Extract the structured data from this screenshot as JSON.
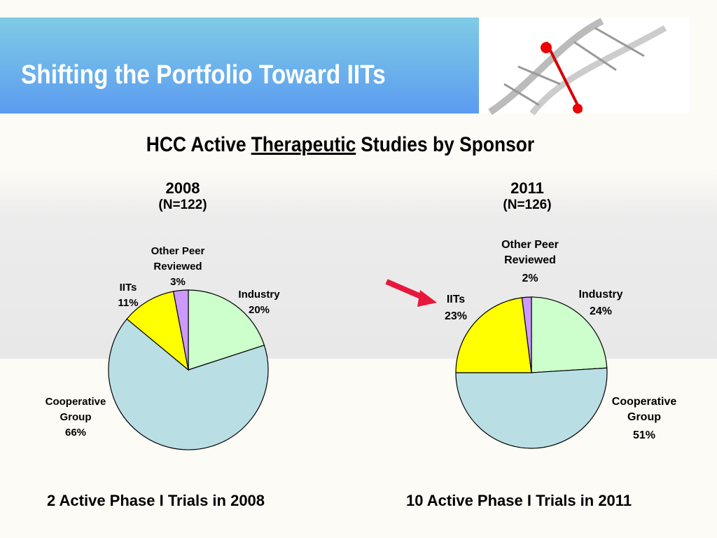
{
  "title": "Shifting the Portfolio Toward IITs",
  "subtitle": [
    "HCC Active",
    "Therapeutic",
    "Studies by Sponsor"
  ],
  "captions": [
    "2 Active Phase I Trials in 2008",
    "10 Active Phase I Trials in 2011"
  ],
  "chart_data": [
    {
      "type": "pie",
      "title": "2008",
      "subtitle": "(N=122)",
      "categories": [
        "Industry",
        "Cooperative Group",
        "IITs",
        "Other Peer Reviewed"
      ],
      "values": [
        20,
        66,
        11,
        3
      ],
      "value_labels": [
        "20%",
        "66%",
        "11%",
        "3%"
      ],
      "colors": [
        "#ccffcc",
        "#b9dfe4",
        "#ffff00",
        "#cc99ff"
      ]
    },
    {
      "type": "pie",
      "title": "2011",
      "subtitle": "(N=126)",
      "categories": [
        "Industry",
        "Cooperative Group",
        "IITs",
        "Other Peer Reviewed"
      ],
      "values": [
        24,
        51,
        23,
        2
      ],
      "value_labels": [
        "24%",
        "51%",
        "23%",
        "2%"
      ],
      "colors": [
        "#ccffcc",
        "#b9dfe4",
        "#ffff00",
        "#cc99ff"
      ]
    }
  ]
}
